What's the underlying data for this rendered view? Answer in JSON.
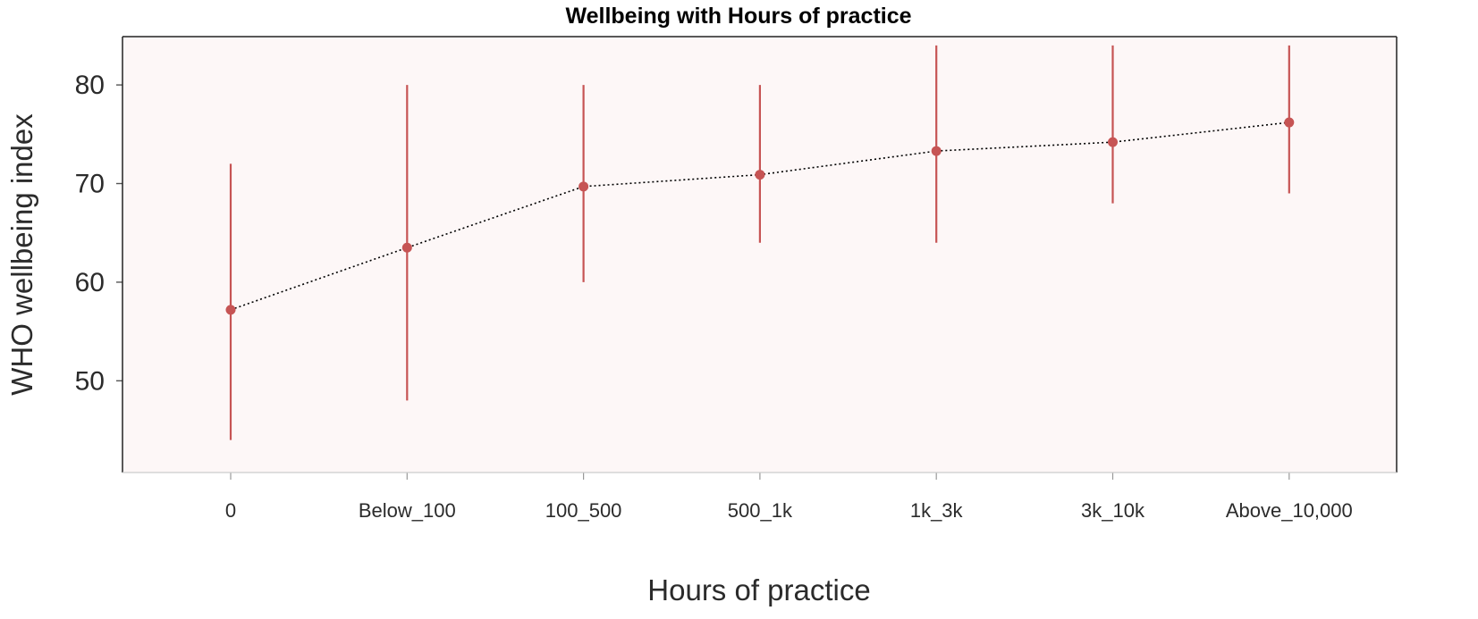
{
  "chart_data": {
    "type": "line",
    "title": "Wellbeing with Hours of practice",
    "xlabel": "Hours of practice",
    "ylabel": "WHO wellbeing index",
    "categories": [
      "0",
      "Below_100",
      "100_500",
      "500_1k",
      "1k_3k",
      "3k_10k",
      "Above_10,000"
    ],
    "series": [
      {
        "values": [
          57.2,
          63.5,
          69.7,
          70.9,
          73.3,
          74.2,
          76.2
        ],
        "lower": [
          44,
          48,
          60,
          64,
          64,
          68,
          69
        ],
        "upper": [
          72,
          80,
          80,
          80,
          84,
          84,
          84
        ]
      }
    ],
    "yticks": [
      50,
      60,
      70,
      80
    ],
    "ylim": [
      40.7,
      84.9
    ],
    "grid": false,
    "legend": "none",
    "colors": {
      "panel_background": "#fdf7f7",
      "point": "#c65454",
      "errorbar": "#c65454",
      "line": "#000000"
    }
  }
}
